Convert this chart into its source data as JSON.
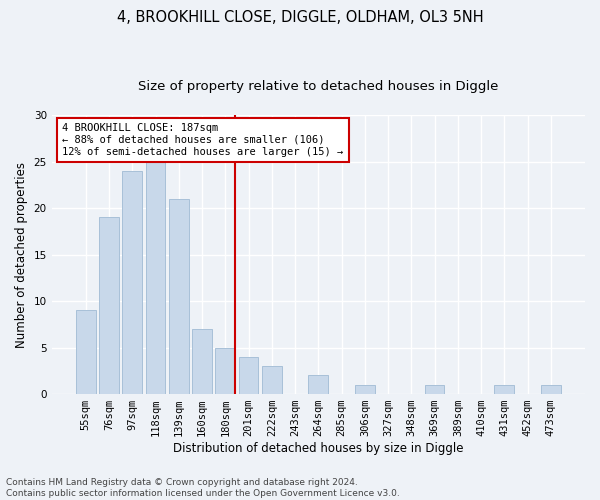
{
  "title1": "4, BROOKHILL CLOSE, DIGGLE, OLDHAM, OL3 5NH",
  "title2": "Size of property relative to detached houses in Diggle",
  "xlabel": "Distribution of detached houses by size in Diggle",
  "ylabel": "Number of detached properties",
  "categories": [
    "55sqm",
    "76sqm",
    "97sqm",
    "118sqm",
    "139sqm",
    "160sqm",
    "180sqm",
    "201sqm",
    "222sqm",
    "243sqm",
    "264sqm",
    "285sqm",
    "306sqm",
    "327sqm",
    "348sqm",
    "369sqm",
    "389sqm",
    "410sqm",
    "431sqm",
    "452sqm",
    "473sqm"
  ],
  "values": [
    9,
    19,
    24,
    25,
    21,
    7,
    5,
    4,
    3,
    0,
    2,
    0,
    1,
    0,
    0,
    1,
    0,
    0,
    1,
    0,
    1
  ],
  "bar_color": "#c8d8ea",
  "bar_edgecolor": "#a8c0d8",
  "vline_index": 6,
  "vline_color": "#cc0000",
  "annotation_text": "4 BROOKHILL CLOSE: 187sqm\n← 88% of detached houses are smaller (106)\n12% of semi-detached houses are larger (15) →",
  "annotation_box_color": "#ffffff",
  "annotation_box_edgecolor": "#cc0000",
  "ylim": [
    0,
    30
  ],
  "yticks": [
    0,
    5,
    10,
    15,
    20,
    25,
    30
  ],
  "footer_text": "Contains HM Land Registry data © Crown copyright and database right 2024.\nContains public sector information licensed under the Open Government Licence v3.0.",
  "bg_color": "#eef2f7",
  "plot_bg_color": "#eef2f7",
  "grid_color": "#ffffff",
  "title1_fontsize": 10.5,
  "title2_fontsize": 9.5,
  "xlabel_fontsize": 8.5,
  "ylabel_fontsize": 8.5,
  "tick_fontsize": 7.5,
  "annotation_fontsize": 7.5,
  "footer_fontsize": 6.5
}
